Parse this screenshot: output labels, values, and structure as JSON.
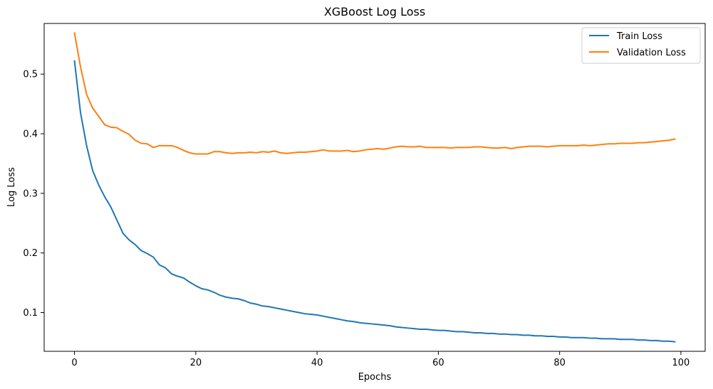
{
  "chart_data": {
    "type": "line",
    "title": "XGBoost Log Loss",
    "xlabel": "Epochs",
    "ylabel": "Log Loss",
    "xlim": [
      -5,
      104
    ],
    "ylim": [
      0.035,
      0.585
    ],
    "xticks": [
      0,
      20,
      40,
      60,
      80,
      100
    ],
    "yticks": [
      0.1,
      0.2,
      0.3,
      0.4,
      0.5
    ],
    "ytick_labels": [
      "0.1",
      "0.2",
      "0.3",
      "0.4",
      "0.5"
    ],
    "grid": false,
    "legend_position": "top-right",
    "x": [
      0,
      1,
      2,
      3,
      4,
      5,
      6,
      7,
      8,
      9,
      10,
      11,
      12,
      13,
      14,
      15,
      16,
      17,
      18,
      19,
      20,
      21,
      22,
      23,
      24,
      25,
      26,
      27,
      28,
      29,
      30,
      31,
      32,
      33,
      34,
      35,
      36,
      37,
      38,
      39,
      40,
      41,
      42,
      43,
      44,
      45,
      46,
      47,
      48,
      49,
      50,
      51,
      52,
      53,
      54,
      55,
      56,
      57,
      58,
      59,
      60,
      61,
      62,
      63,
      64,
      65,
      66,
      67,
      68,
      69,
      70,
      71,
      72,
      73,
      74,
      75,
      76,
      77,
      78,
      79,
      80,
      81,
      82,
      83,
      84,
      85,
      86,
      87,
      88,
      89,
      90,
      91,
      92,
      93,
      94,
      95,
      96,
      97,
      98,
      99
    ],
    "series": [
      {
        "name": "Train Loss",
        "color": "#1f77b4",
        "values": [
          0.522,
          0.435,
          0.38,
          0.338,
          0.314,
          0.294,
          0.277,
          0.255,
          0.233,
          0.222,
          0.214,
          0.204,
          0.199,
          0.193,
          0.18,
          0.175,
          0.165,
          0.161,
          0.158,
          0.151,
          0.145,
          0.14,
          0.138,
          0.134,
          0.129,
          0.126,
          0.124,
          0.123,
          0.12,
          0.116,
          0.114,
          0.111,
          0.11,
          0.108,
          0.106,
          0.104,
          0.102,
          0.1,
          0.098,
          0.097,
          0.096,
          0.094,
          0.092,
          0.09,
          0.088,
          0.086,
          0.085,
          0.083,
          0.082,
          0.081,
          0.08,
          0.079,
          0.078,
          0.076,
          0.075,
          0.074,
          0.073,
          0.072,
          0.072,
          0.071,
          0.07,
          0.07,
          0.069,
          0.068,
          0.068,
          0.067,
          0.066,
          0.066,
          0.065,
          0.065,
          0.064,
          0.064,
          0.063,
          0.063,
          0.062,
          0.062,
          0.061,
          0.061,
          0.06,
          0.06,
          0.059,
          0.059,
          0.058,
          0.058,
          0.058,
          0.057,
          0.057,
          0.056,
          0.056,
          0.056,
          0.055,
          0.055,
          0.055,
          0.054,
          0.054,
          0.053,
          0.053,
          0.052,
          0.052,
          0.051
        ]
      },
      {
        "name": "Validation Loss",
        "color": "#ff7f0e",
        "values": [
          0.569,
          0.512,
          0.466,
          0.443,
          0.429,
          0.415,
          0.411,
          0.41,
          0.404,
          0.399,
          0.389,
          0.384,
          0.383,
          0.377,
          0.38,
          0.38,
          0.38,
          0.377,
          0.372,
          0.368,
          0.366,
          0.366,
          0.366,
          0.37,
          0.37,
          0.368,
          0.367,
          0.368,
          0.368,
          0.369,
          0.368,
          0.37,
          0.369,
          0.371,
          0.368,
          0.367,
          0.368,
          0.369,
          0.369,
          0.37,
          0.371,
          0.373,
          0.371,
          0.371,
          0.371,
          0.372,
          0.37,
          0.371,
          0.373,
          0.374,
          0.375,
          0.374,
          0.376,
          0.378,
          0.379,
          0.378,
          0.378,
          0.379,
          0.377,
          0.377,
          0.377,
          0.377,
          0.376,
          0.377,
          0.377,
          0.377,
          0.378,
          0.378,
          0.377,
          0.376,
          0.376,
          0.377,
          0.375,
          0.377,
          0.378,
          0.379,
          0.379,
          0.379,
          0.378,
          0.379,
          0.38,
          0.38,
          0.38,
          0.38,
          0.381,
          0.38,
          0.381,
          0.382,
          0.383,
          0.383,
          0.384,
          0.384,
          0.384,
          0.385,
          0.385,
          0.386,
          0.387,
          0.388,
          0.389,
          0.391
        ]
      }
    ]
  }
}
